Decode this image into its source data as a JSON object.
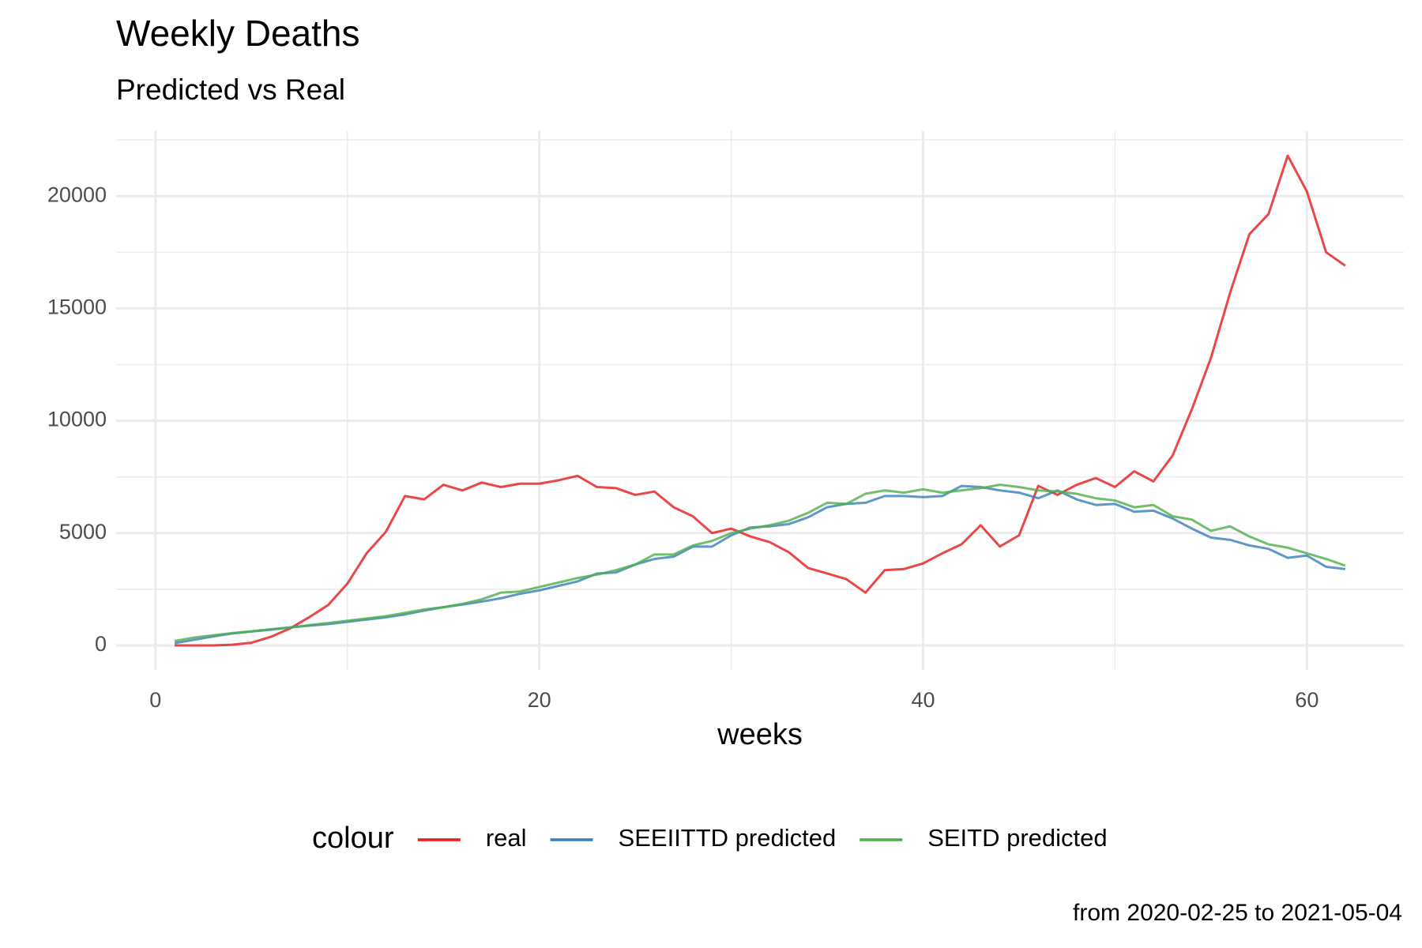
{
  "chart_data": {
    "type": "line",
    "title": "Weekly Deaths",
    "subtitle": "Predicted vs Real",
    "x_label": "weeks",
    "legend_title": "colour",
    "caption": "from 2020-02-25 to 2021-05-04",
    "legend_position": "bottom",
    "grid": true,
    "x": [
      1,
      2,
      3,
      4,
      5,
      6,
      7,
      8,
      9,
      10,
      11,
      12,
      13,
      14,
      15,
      16,
      17,
      18,
      19,
      20,
      21,
      22,
      23,
      24,
      25,
      26,
      27,
      28,
      29,
      30,
      31,
      32,
      33,
      34,
      35,
      36,
      37,
      38,
      39,
      40,
      41,
      42,
      43,
      44,
      45,
      46,
      47,
      48,
      49,
      50,
      51,
      52,
      53,
      54,
      55,
      56,
      57,
      58,
      59,
      60,
      61,
      62
    ],
    "xlim": [
      -2.05,
      65.05
    ],
    "xticks": [
      0,
      20,
      40,
      60
    ],
    "ylim": [
      -1090,
      22890
    ],
    "yticks": [
      0,
      5000,
      10000,
      15000,
      20000
    ],
    "series": [
      {
        "name": "real",
        "color": "#e41a1c",
        "values": [
          0,
          0,
          0,
          30,
          120,
          380,
          750,
          1250,
          1800,
          2750,
          4100,
          5050,
          6650,
          6500,
          7150,
          6900,
          7250,
          7050,
          7200,
          7200,
          7350,
          7550,
          7050,
          7000,
          6700,
          6850,
          6150,
          5750,
          5000,
          5200,
          4850,
          4600,
          4150,
          3450,
          3200,
          2950,
          2350,
          3350,
          3400,
          3650,
          4100,
          4500,
          5350,
          4400,
          4900,
          7100,
          6700,
          7150,
          7450,
          7050,
          7750,
          7300,
          8450,
          10500,
          12800,
          15700,
          18300,
          19200,
          21800,
          20200,
          17500,
          16900
        ]
      },
      {
        "name": "SEEIITTD predicted",
        "color": "#377eb8",
        "values": [
          100,
          250,
          400,
          530,
          620,
          700,
          800,
          880,
          950,
          1050,
          1150,
          1250,
          1380,
          1550,
          1700,
          1820,
          1950,
          2100,
          2300,
          2450,
          2650,
          2850,
          3200,
          3250,
          3600,
          3850,
          3950,
          4400,
          4400,
          4900,
          5250,
          5300,
          5400,
          5700,
          6150,
          6300,
          6350,
          6650,
          6650,
          6600,
          6650,
          7100,
          7050,
          6900,
          6800,
          6550,
          6900,
          6500,
          6250,
          6300,
          5950,
          6000,
          5650,
          5200,
          4800,
          4700,
          4450,
          4300,
          3900,
          4000,
          3500,
          3400
        ]
      },
      {
        "name": "SEITD predicted",
        "color": "#4daf4a",
        "values": [
          200,
          350,
          450,
          550,
          630,
          720,
          800,
          900,
          1000,
          1100,
          1200,
          1300,
          1450,
          1600,
          1700,
          1850,
          2050,
          2350,
          2400,
          2600,
          2800,
          3000,
          3150,
          3350,
          3600,
          4050,
          4050,
          4450,
          4650,
          5000,
          5200,
          5350,
          5550,
          5900,
          6350,
          6300,
          6750,
          6900,
          6800,
          6950,
          6800,
          6900,
          7000,
          7150,
          7050,
          6900,
          6850,
          6750,
          6550,
          6450,
          6150,
          6250,
          5750,
          5600,
          5100,
          5300,
          4850,
          4500,
          4350,
          4100,
          3850,
          3550
        ]
      }
    ]
  }
}
